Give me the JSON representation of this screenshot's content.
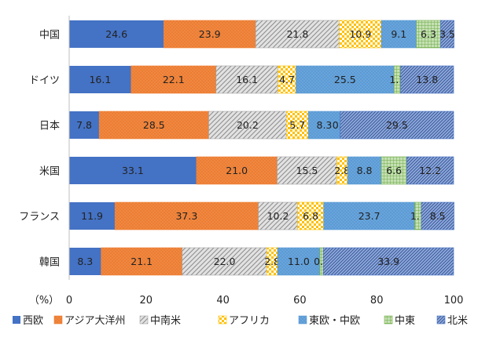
{
  "chart_data": {
    "type": "bar",
    "orientation": "horizontal",
    "stacked": true,
    "title": "",
    "xlabel": "（%）",
    "ylabel": "",
    "xlim": [
      0,
      100
    ],
    "x_ticks": [
      0,
      20,
      40,
      60,
      80,
      100
    ],
    "grid": false,
    "legend_position": "bottom",
    "categories": [
      "中国",
      "ドイツ",
      "日本",
      "米国",
      "フランス",
      "韓国"
    ],
    "series": [
      {
        "name": "西欧",
        "color": "#4472C4",
        "pattern": "solid",
        "values": [
          24.6,
          16.1,
          7.8,
          33.1,
          11.9,
          8.3
        ]
      },
      {
        "name": "アジア大洋州",
        "color": "#ED7D31",
        "pattern": "dots",
        "values": [
          23.9,
          22.1,
          28.5,
          21.0,
          37.3,
          21.1
        ]
      },
      {
        "name": "中南米",
        "color": "#A5A5A5",
        "pattern": "diagonal",
        "values": [
          21.8,
          16.1,
          20.2,
          15.5,
          10.2,
          22.0
        ]
      },
      {
        "name": "アフリカ",
        "color": "#FFC000",
        "pattern": "checker",
        "values": [
          10.9,
          4.7,
          5.7,
          2.8,
          6.8,
          2.8
        ]
      },
      {
        "name": "東欧・中欧",
        "color": "#5B9BD5",
        "pattern": "dots",
        "values": [
          9.1,
          25.5,
          8.3,
          8.8,
          23.7,
          11.0
        ]
      },
      {
        "name": "中東",
        "color": "#70AD47",
        "pattern": "grid",
        "values": [
          6.3,
          1.7,
          0.0,
          6.6,
          1.7,
          0.9
        ]
      },
      {
        "name": "北米",
        "color": "#4472C4",
        "pattern": "diag-dense",
        "values": [
          3.5,
          13.8,
          29.5,
          12.2,
          8.5,
          33.9
        ]
      }
    ]
  }
}
